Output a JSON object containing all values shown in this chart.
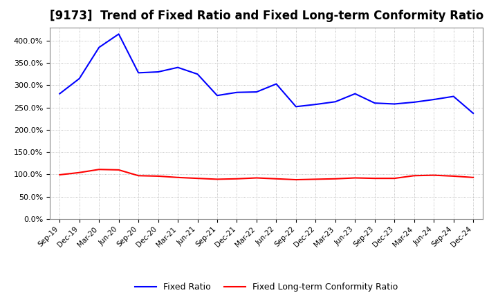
{
  "title": "[9173]  Trend of Fixed Ratio and Fixed Long-term Conformity Ratio",
  "x_labels": [
    "Sep-19",
    "Dec-19",
    "Mar-20",
    "Jun-20",
    "Sep-20",
    "Dec-20",
    "Mar-21",
    "Jun-21",
    "Sep-21",
    "Dec-21",
    "Mar-22",
    "Jun-22",
    "Sep-22",
    "Dec-22",
    "Mar-23",
    "Jun-23",
    "Sep-23",
    "Dec-23",
    "Mar-24",
    "Jun-24",
    "Sep-24",
    "Dec-24"
  ],
  "fixed_ratio": [
    281,
    315,
    385,
    415,
    328,
    330,
    340,
    325,
    277,
    284,
    285,
    303,
    252,
    257,
    263,
    281,
    260,
    258,
    262,
    268,
    275,
    237
  ],
  "fixed_lt_ratio": [
    99,
    104,
    111,
    110,
    97,
    96,
    93,
    91,
    89,
    90,
    92,
    90,
    88,
    89,
    90,
    92,
    91,
    91,
    97,
    98,
    96,
    93
  ],
  "fixed_ratio_color": "#0000FF",
  "fixed_lt_ratio_color": "#FF0000",
  "ylim": [
    0,
    430
  ],
  "yticks": [
    0,
    50,
    100,
    150,
    200,
    250,
    300,
    350,
    400
  ],
  "bg_color": "#FFFFFF",
  "plot_bg_color": "#FFFFFF",
  "grid_color": "#AAAAAA",
  "title_fontsize": 12,
  "legend_fixed_ratio": "Fixed Ratio",
  "legend_fixed_lt_ratio": "Fixed Long-term Conformity Ratio",
  "line_width": 1.5
}
